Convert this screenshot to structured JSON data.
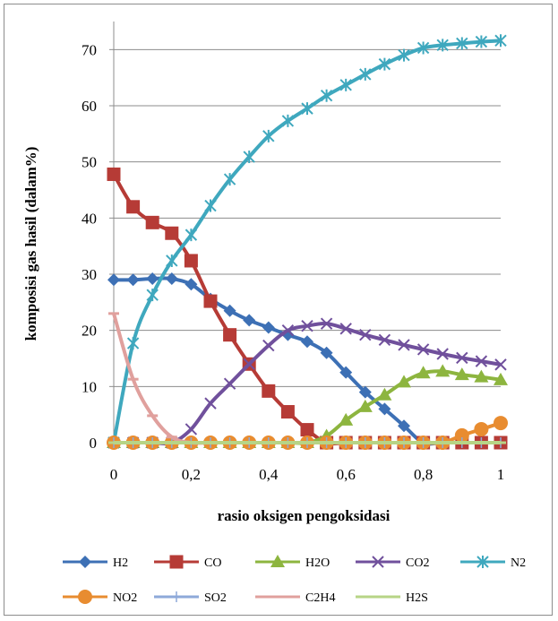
{
  "chart_data": {
    "type": "line",
    "xlabel": "rasio oksigen pengoksidasi",
    "ylabel": "komposisi gas hasil (dalam%)",
    "xlim": [
      0,
      1
    ],
    "ylim": [
      0,
      75
    ],
    "x_ticks": [
      "0",
      "0,2",
      "0,4",
      "0,6",
      "0,8",
      "1"
    ],
    "y_ticks": [
      "0",
      "10",
      "20",
      "30",
      "40",
      "50",
      "60",
      "70"
    ],
    "grid": "horizontal",
    "legend_position": "bottom",
    "x": [
      0,
      0.05,
      0.1,
      0.15,
      0.2,
      0.25,
      0.3,
      0.35,
      0.4,
      0.45,
      0.5,
      0.55,
      0.6,
      0.65,
      0.7,
      0.75,
      0.8,
      0.85,
      0.9,
      0.95,
      1
    ],
    "series": [
      {
        "name": "H2",
        "color": "#3D70B5",
        "marker": "diamond",
        "values": [
          29,
          29,
          29.2,
          29.2,
          28.2,
          25.6,
          23.5,
          21.8,
          20.5,
          19.2,
          18,
          16,
          12.5,
          9,
          6,
          3,
          0,
          0,
          0,
          0,
          0
        ]
      },
      {
        "name": "CO",
        "color": "#B63B36",
        "marker": "square",
        "values": [
          47.8,
          42,
          39.2,
          37.3,
          32.4,
          25.2,
          19.2,
          14,
          9.2,
          5.5,
          2.3,
          0,
          0,
          0,
          0,
          0,
          0,
          0,
          0,
          0,
          0
        ]
      },
      {
        "name": "H2O",
        "color": "#8DB53F",
        "marker": "triangle",
        "values": [
          0,
          0,
          0,
          0,
          0,
          0,
          0,
          0,
          0,
          0,
          0,
          1.2,
          4,
          6.4,
          8.5,
          10.8,
          12.4,
          12.7,
          12.1,
          11.7,
          11.2
        ]
      },
      {
        "name": "CO2",
        "color": "#70509C",
        "marker": "x",
        "values": [
          0,
          0,
          0,
          0,
          2.4,
          7,
          10.5,
          14,
          17.3,
          20,
          20.8,
          21.2,
          20.3,
          19.2,
          18.3,
          17.4,
          16.6,
          15.8,
          15.1,
          14.5,
          13.9
        ]
      },
      {
        "name": "N2",
        "color": "#3FA8BE",
        "marker": "star",
        "values": [
          0,
          17.7,
          26.3,
          32.4,
          37,
          42.2,
          46.9,
          50.9,
          54.6,
          57.3,
          59.5,
          61.8,
          63.7,
          65.6,
          67.4,
          69,
          70.3,
          70.8,
          71.1,
          71.4,
          71.6
        ]
      },
      {
        "name": "NO2",
        "color": "#E88C30",
        "marker": "circle",
        "values": [
          0,
          0,
          0,
          0,
          0,
          0,
          0,
          0,
          0,
          0,
          0,
          0,
          0,
          0,
          0,
          0,
          0,
          0,
          1.3,
          2.4,
          3.5
        ]
      },
      {
        "name": "SO2",
        "color": "#8EA9D9",
        "marker": "plus",
        "values": [
          0,
          0,
          0,
          0,
          0,
          0,
          0,
          0,
          0,
          0,
          0,
          0,
          0,
          0,
          0,
          0,
          0,
          0,
          0,
          0,
          0
        ]
      },
      {
        "name": "C2H4",
        "color": "#E0A09D",
        "marker": "dash",
        "values": [
          23,
          11.3,
          4.8,
          1,
          0,
          0,
          0,
          0,
          0,
          0,
          0,
          0,
          0,
          0,
          0,
          0,
          0,
          0,
          0,
          0,
          0
        ]
      },
      {
        "name": "H2S",
        "color": "#B7D486",
        "marker": "dash",
        "values": [
          0,
          0,
          0,
          0,
          0,
          0,
          0,
          0,
          0,
          0,
          0,
          0,
          0,
          0,
          0,
          0,
          0,
          0,
          0,
          0,
          0
        ]
      }
    ]
  }
}
